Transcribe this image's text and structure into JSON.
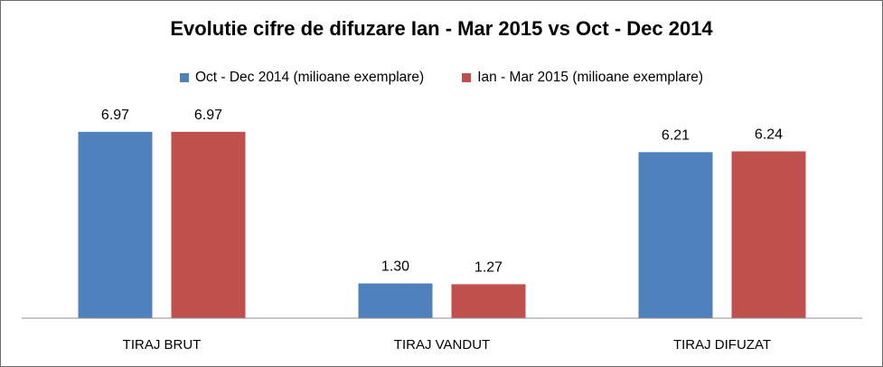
{
  "chart_data": {
    "type": "bar",
    "title": "Evolutie cifre de difuzare Ian - Mar 2015 vs Oct - Dec 2014",
    "categories": [
      "TIRAJ BRUT",
      "TIRAJ VANDUT",
      "TIRAJ DIFUZAT"
    ],
    "series": [
      {
        "name": "Oct - Dec 2014 (milioane exemplare)",
        "color": "#4f81bd",
        "values": [
          6.97,
          1.3,
          6.21
        ],
        "labels": [
          "6.97",
          "1.30",
          "6.21"
        ]
      },
      {
        "name": "Ian - Mar 2015 (milioane exemplare)",
        "color": "#c0504d",
        "values": [
          6.97,
          1.27,
          6.24
        ],
        "labels": [
          "6.97",
          "1.27",
          "6.24"
        ]
      }
    ],
    "ylim": [
      0,
      7.1
    ],
    "legend": "top",
    "grid": false,
    "xlabel": "",
    "ylabel": ""
  }
}
